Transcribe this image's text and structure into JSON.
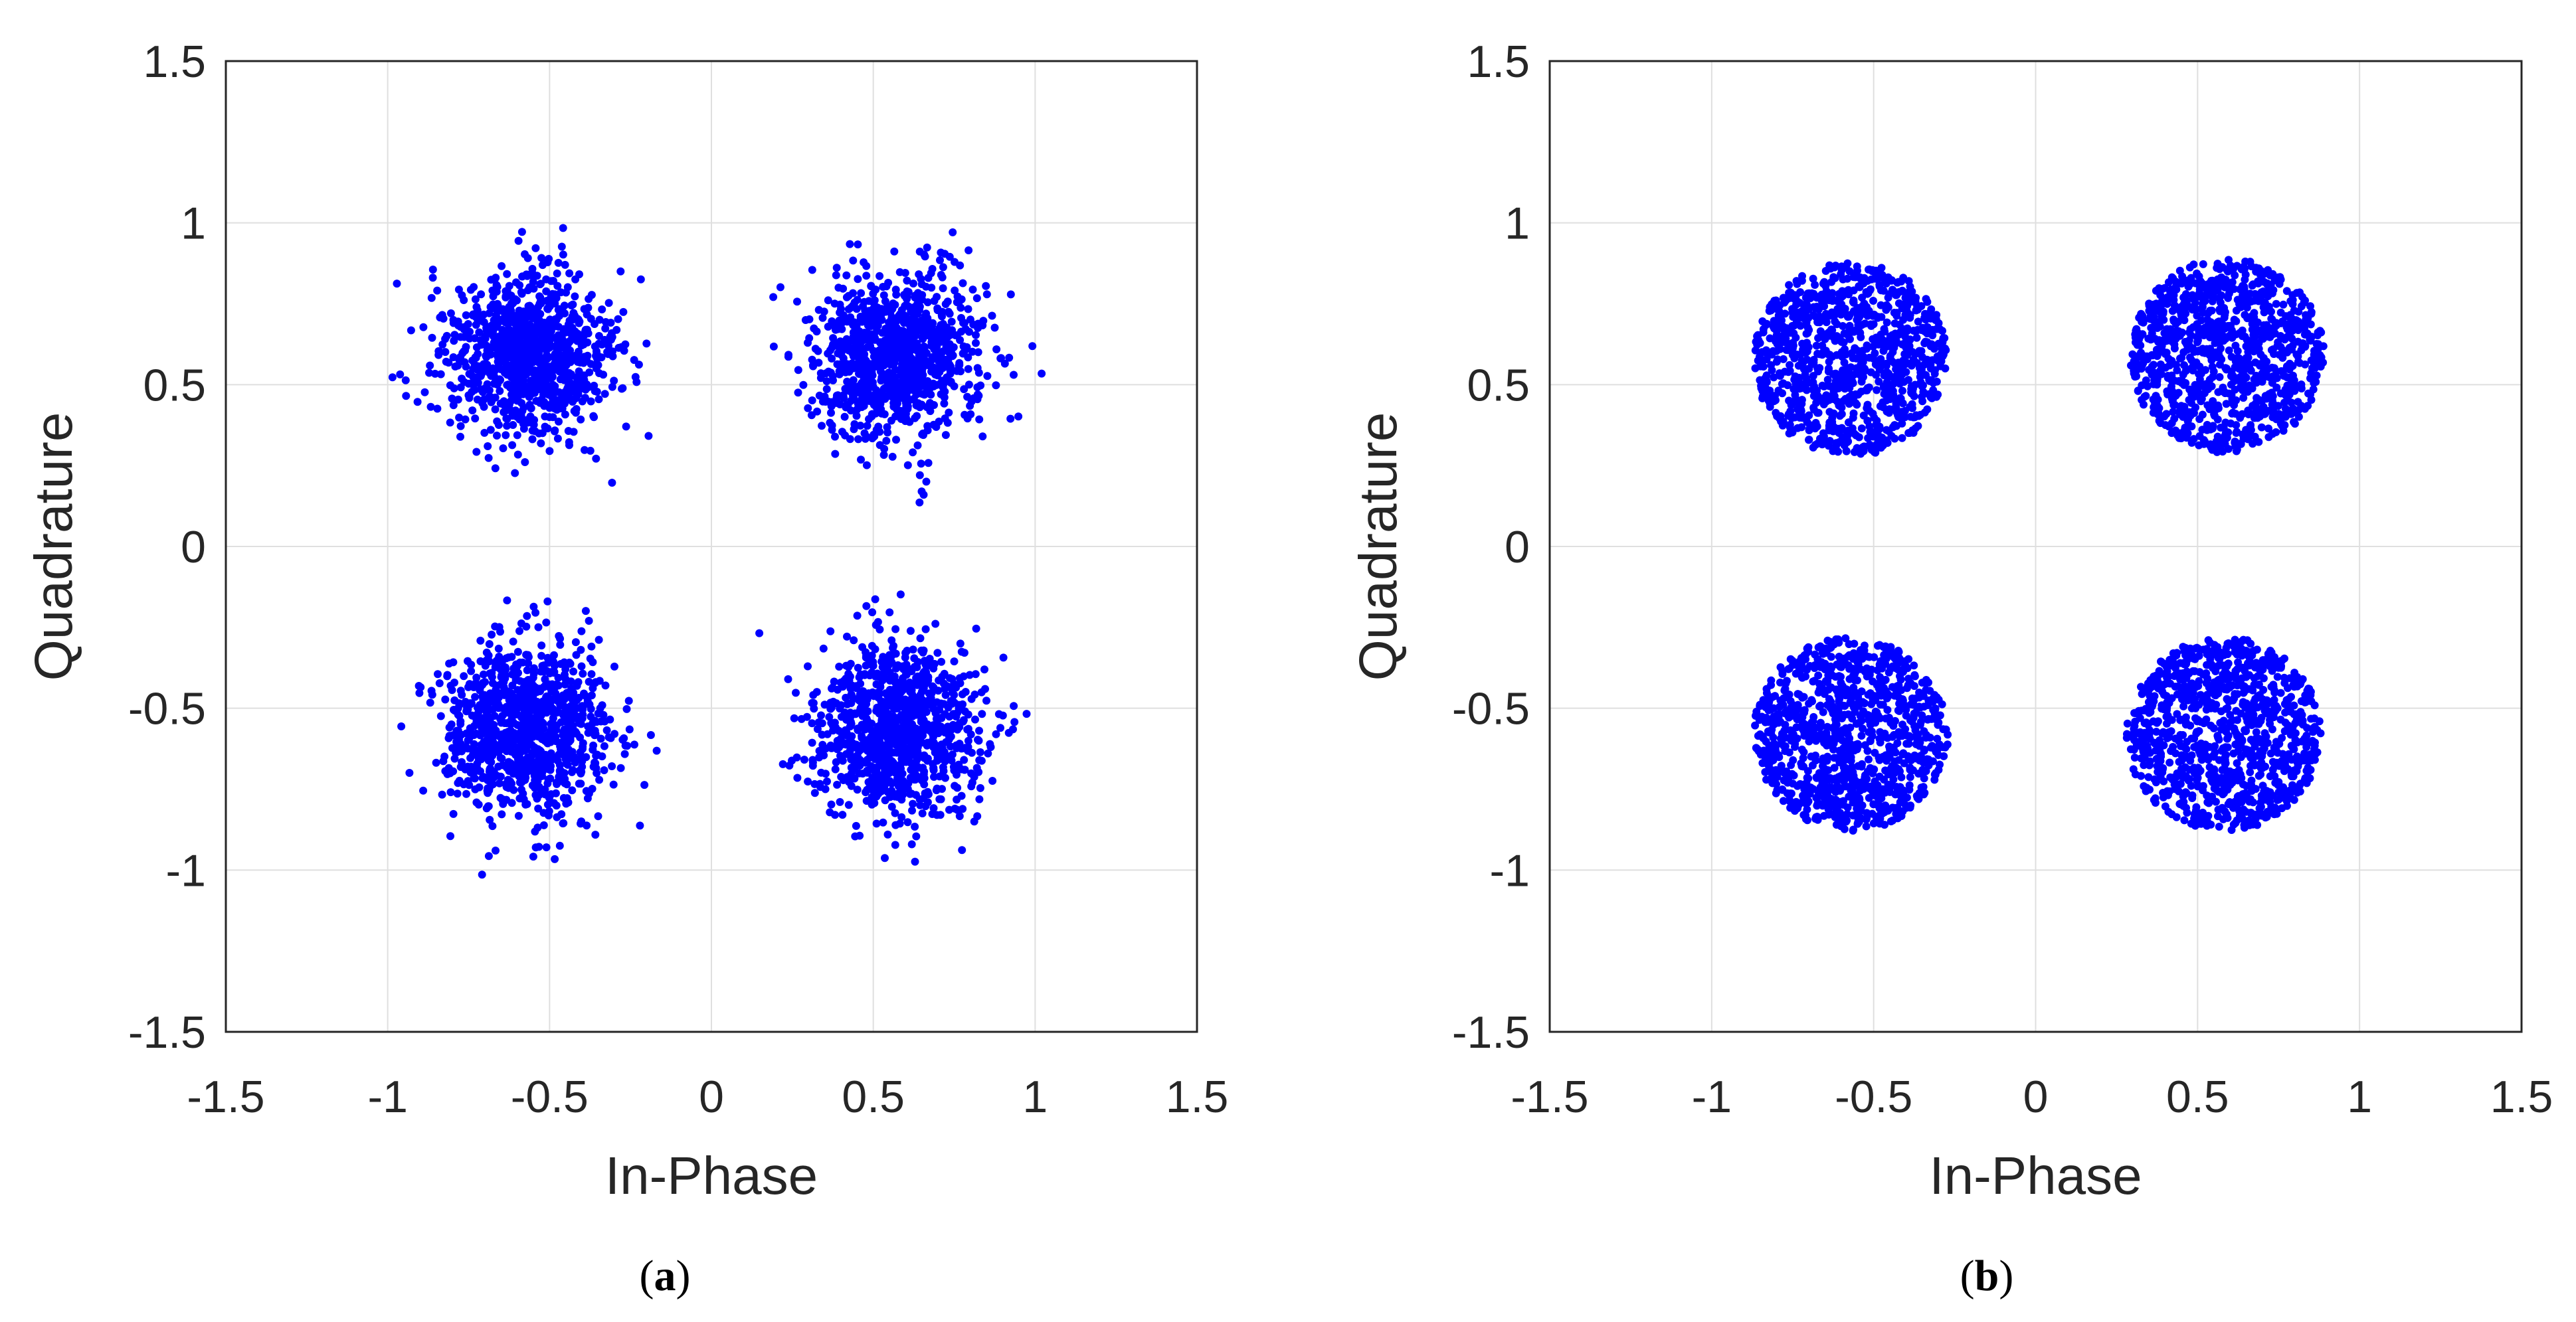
{
  "chart_data": [
    {
      "type": "scatter",
      "caption_letter": "a",
      "xlabel": "In-Phase",
      "ylabel": "Quadrature",
      "xlim": [
        -1.5,
        1.5
      ],
      "ylim": [
        -1.5,
        1.5
      ],
      "x_ticks": [
        "-1.5",
        "-1",
        "-0.5",
        "0",
        "0.5",
        "1",
        "1.5"
      ],
      "y_ticks": [
        "1.5",
        "1",
        "0.5",
        "0",
        "-0.5",
        "-1",
        "-1.5"
      ],
      "grid": true,
      "marker_color": "#0000ff",
      "clusters": [
        {
          "center": [
            -0.57,
            0.59
          ],
          "spread": 0.13,
          "points": 1000,
          "shape": "gaussian"
        },
        {
          "center": [
            0.57,
            0.59
          ],
          "spread": 0.13,
          "points": 1000,
          "shape": "gaussian"
        },
        {
          "center": [
            -0.57,
            -0.57
          ],
          "spread": 0.13,
          "points": 1000,
          "shape": "gaussian"
        },
        {
          "center": [
            0.57,
            -0.57
          ],
          "spread": 0.13,
          "points": 1000,
          "shape": "gaussian"
        }
      ]
    },
    {
      "type": "scatter",
      "caption_letter": "b",
      "xlabel": "In-Phase",
      "ylabel": "Quadrature",
      "xlim": [
        -1.5,
        1.5
      ],
      "ylim": [
        -1.5,
        1.5
      ],
      "x_ticks": [
        "-1.5",
        "-1",
        "-0.5",
        "0",
        "0.5",
        "1",
        "1.5"
      ],
      "y_ticks": [
        "1.5",
        "1",
        "0.5",
        "0",
        "-0.5",
        "-1",
        "-1.5"
      ],
      "grid": true,
      "marker_color": "#0000ff",
      "clusters": [
        {
          "center": [
            -0.57,
            0.58
          ],
          "radius": 0.3,
          "points": 1000,
          "shape": "disk"
        },
        {
          "center": [
            0.59,
            0.59
          ],
          "radius": 0.3,
          "points": 1000,
          "shape": "disk"
        },
        {
          "center": [
            -0.57,
            -0.58
          ],
          "radius": 0.3,
          "points": 1000,
          "shape": "disk"
        },
        {
          "center": [
            0.58,
            -0.58
          ],
          "radius": 0.3,
          "points": 1000,
          "shape": "disk"
        }
      ]
    }
  ]
}
